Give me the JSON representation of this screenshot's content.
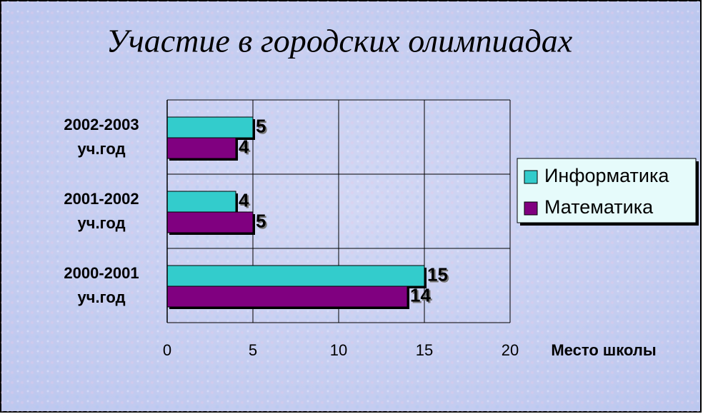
{
  "chart_data": {
    "type": "hbar",
    "title": "Участие в городских олимпиадах",
    "categories": [
      [
        "2000-2001",
        "уч.год"
      ],
      [
        "2001-2002",
        "уч.год"
      ],
      [
        "2002-2003",
        "уч.год"
      ]
    ],
    "series": [
      {
        "name": "Информатика",
        "color": "#33cccc",
        "values": [
          15,
          4,
          5
        ]
      },
      {
        "name": "Математика",
        "color": "#800080",
        "values": [
          14,
          5,
          4
        ]
      }
    ],
    "xlim": [
      0,
      20
    ],
    "xticks": [
      0,
      5,
      10,
      15,
      20
    ],
    "x_label": "Место школы",
    "grid": true,
    "legend": "right"
  }
}
